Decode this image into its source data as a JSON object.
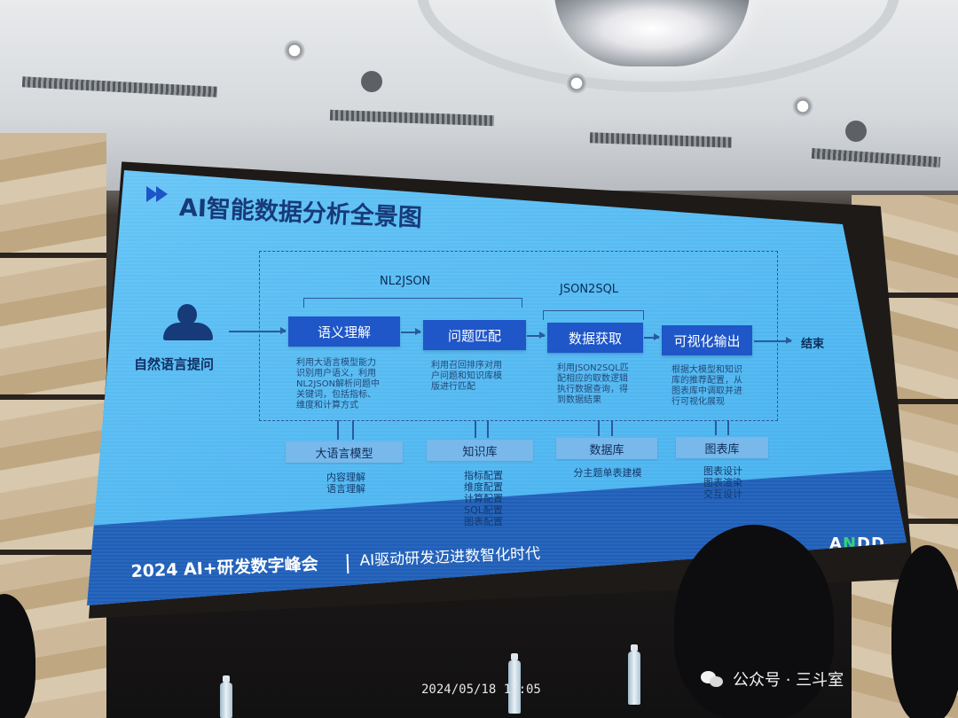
{
  "slide": {
    "title": "AI智能数据分析全景图",
    "input_label": "自然语言提问",
    "end_label": "结束",
    "stage_labels": [
      "NL2JSON",
      "JSON2SQL"
    ],
    "steps": [
      {
        "label": "语义理解",
        "desc": [
          "利用大语言模型能力",
          "识别用户语义，利用",
          "NL2JSON解析问题中",
          "关键词，包括指标、",
          "维度和计算方式"
        ]
      },
      {
        "label": "问题匹配",
        "desc": [
          "利用召回排序对用",
          "户问题和知识库模",
          "版进行匹配"
        ]
      },
      {
        "label": "数据获取",
        "desc": [
          "利用JSON2SQL匹",
          "配相应的取数逻辑",
          "执行数据查询，得",
          "到数据结果"
        ]
      },
      {
        "label": "可视化输出",
        "desc": [
          "根据大模型和知识",
          "库的推荐配置，从",
          "图表库中调取并进",
          "行可视化展现"
        ]
      }
    ],
    "resources": [
      {
        "label": "大语言模型",
        "items": [
          "内容理解",
          "语言理解"
        ]
      },
      {
        "label": "知识库",
        "items": [
          "指标配置",
          "维度配置",
          "计算配置",
          "SQL配置",
          "图表配置"
        ]
      },
      {
        "label": "数据库",
        "items": [
          "分主题单表建模"
        ]
      },
      {
        "label": "图表库",
        "items": [
          "图表设计",
          "图表渲染",
          "交互设计"
        ]
      }
    ],
    "footer": {
      "event": "2024 AI+研发数字峰会",
      "slogan": "AI驱动研发迈进数智化时代",
      "logo_n": "N",
      "logo_rest": "DD",
      "logo_prefix": "A"
    }
  },
  "overlay": {
    "timestamp": "2024/05/18 17:05",
    "watermark": "公众号 · 三斗室"
  }
}
